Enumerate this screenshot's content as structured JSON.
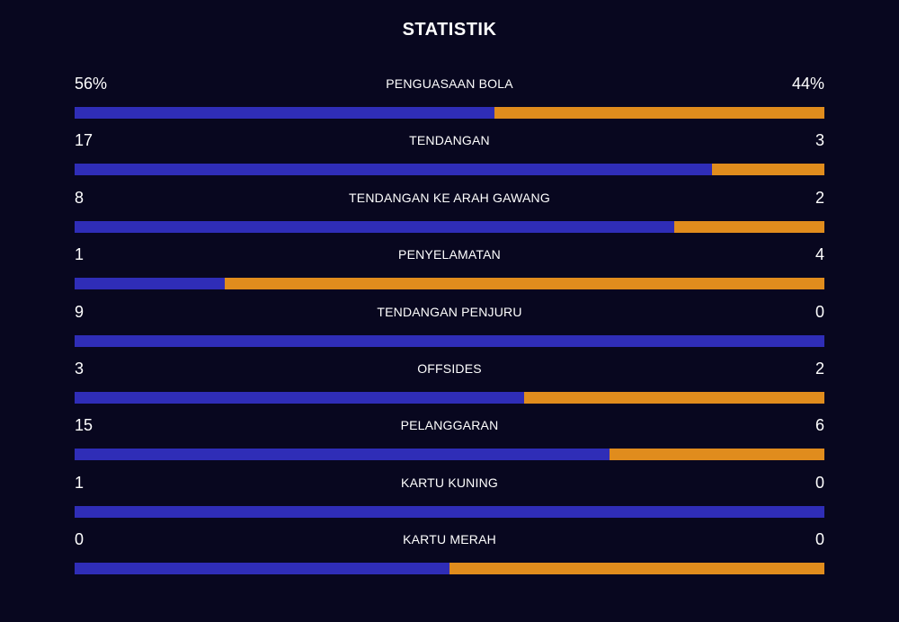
{
  "title": "STATISTIK",
  "colors": {
    "home": "#2f2db7",
    "away": "#e08c1d",
    "background": "#08071f"
  },
  "stats": [
    {
      "label": "PENGUASAAN BOLA",
      "home": "56%",
      "away": "44%",
      "home_share": 0.56
    },
    {
      "label": "TENDANGAN",
      "home": "17",
      "away": "3",
      "home_share": 0.85
    },
    {
      "label": "TENDANGAN KE ARAH GAWANG",
      "home": "8",
      "away": "2",
      "home_share": 0.8
    },
    {
      "label": "PENYELAMATAN",
      "home": "1",
      "away": "4",
      "home_share": 0.2
    },
    {
      "label": "TENDANGAN PENJURU",
      "home": "9",
      "away": "0",
      "home_share": 1.0
    },
    {
      "label": "OFFSIDES",
      "home": "3",
      "away": "2",
      "home_share": 0.6
    },
    {
      "label": "PELANGGARAN",
      "home": "15",
      "away": "6",
      "home_share": 0.714
    },
    {
      "label": "KARTU KUNING",
      "home": "1",
      "away": "0",
      "home_share": 1.0
    },
    {
      "label": "KARTU MERAH",
      "home": "0",
      "away": "0",
      "home_share": 0.5
    }
  ]
}
